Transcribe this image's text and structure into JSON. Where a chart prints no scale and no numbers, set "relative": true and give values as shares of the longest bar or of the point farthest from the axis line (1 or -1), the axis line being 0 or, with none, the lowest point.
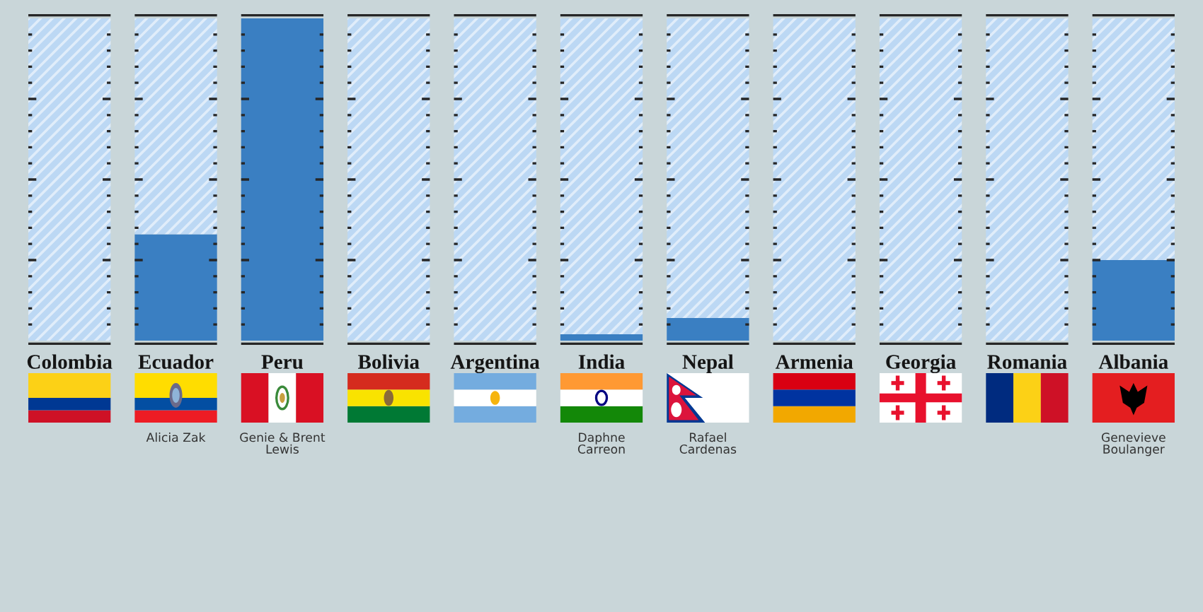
{
  "chart_data": {
    "type": "bar",
    "relative": true,
    "stacked": true,
    "categories": [
      "Colombia",
      "Ecuador",
      "Peru",
      "Bolivia",
      "Argentina",
      "India",
      "Nepal",
      "Armenia",
      "Georgia",
      "Romania",
      "Albania"
    ],
    "series": [
      {
        "color": "#3a7fc2",
        "values": [
          0,
          0.33,
          1,
          0,
          0,
          0.02,
          0.07,
          0,
          0,
          0,
          0.25
        ]
      },
      {
        "color": "#bcd8f4",
        "values": [
          1,
          0.67,
          0,
          1,
          1,
          0.98,
          0.93,
          1,
          1,
          1,
          0.75
        ]
      }
    ],
    "annotations": [
      "Alicia Zak",
      "Genie & Brent\nLewis",
      "Daphne\nCarreon",
      "Rafael\nCardenas",
      "Genevieve\nBoulanger"
    ]
  }
}
